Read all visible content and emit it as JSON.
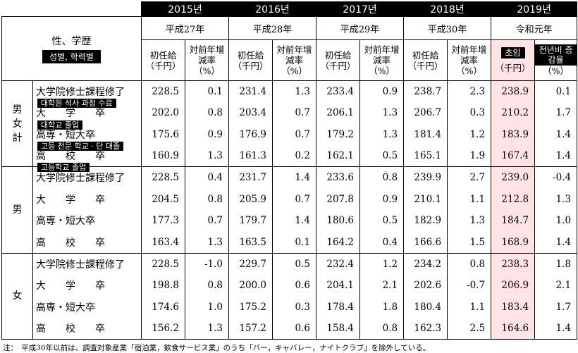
{
  "years": [
    {
      "year": "2015년",
      "era": "平成27年"
    },
    {
      "year": "2016년",
      "era": "平成28年"
    },
    {
      "year": "2017년",
      "era": "平成29年"
    },
    {
      "year": "2018년",
      "era": "平成30年"
    },
    {
      "year": "2019년",
      "era": "令和元年"
    }
  ],
  "header": {
    "stub_title": "性、学歴",
    "stub_title_ko": "성별, 학력별",
    "wage_label": "初任給",
    "rate_label": "対前年增減率",
    "wage_unit": "（千円）",
    "rate_unit": "（%）",
    "wage_label_ko": "초임",
    "rate_label_ko": "전년비 증감율"
  },
  "groups": [
    {
      "label": "男女計",
      "rows": [
        {
          "edu": "大学院修士課程修了",
          "edu_ko": "대학원 석사 과정 수료",
          "values": [
            "228.5",
            "0.1",
            "231.4",
            "1.3",
            "233.4",
            "0.9",
            "238.7",
            "2.3",
            "238.9",
            "0.1"
          ]
        },
        {
          "edu": "大　　学　　卒",
          "edu_ko": "대학교 졸업",
          "values": [
            "202.0",
            "0.8",
            "203.4",
            "0.7",
            "206.1",
            "1.3",
            "206.7",
            "0.3",
            "210.2",
            "1.7"
          ]
        },
        {
          "edu": "高専・短大卒",
          "edu_ko": "고등 전문 학교 · 단 대졸",
          "values": [
            "175.6",
            "0.9",
            "176.9",
            "0.7",
            "179.2",
            "1.3",
            "181.4",
            "1.2",
            "183.9",
            "1.4"
          ]
        },
        {
          "edu": "高　　校　　卒",
          "edu_ko": "고등학교 졸업",
          "values": [
            "160.9",
            "1.3",
            "161.3",
            "0.2",
            "162.1",
            "0.5",
            "165.1",
            "1.9",
            "167.4",
            "1.4"
          ]
        }
      ]
    },
    {
      "label": "男",
      "rows": [
        {
          "edu": "大学院修士課程修了",
          "edu_ko": "",
          "values": [
            "228.5",
            "0.4",
            "231.7",
            "1.4",
            "233.6",
            "0.8",
            "239.9",
            "2.7",
            "239.0",
            "-0.4"
          ]
        },
        {
          "edu": "大　　学　　卒",
          "edu_ko": "",
          "values": [
            "204.5",
            "0.8",
            "205.9",
            "0.7",
            "207.8",
            "0.9",
            "210.1",
            "1.1",
            "212.8",
            "1.3"
          ]
        },
        {
          "edu": "高専・短大卒",
          "edu_ko": "",
          "values": [
            "177.3",
            "0.7",
            "179.7",
            "1.4",
            "180.6",
            "0.5",
            "182.9",
            "1.3",
            "184.7",
            "1.0"
          ]
        },
        {
          "edu": "高　　校　　卒",
          "edu_ko": "",
          "values": [
            "163.4",
            "1.3",
            "163.5",
            "0.1",
            "164.2",
            "0.4",
            "166.6",
            "1.5",
            "168.9",
            "1.4"
          ]
        }
      ]
    },
    {
      "label": "女",
      "rows": [
        {
          "edu": "大学院修士課程修了",
          "edu_ko": "",
          "values": [
            "228.5",
            "-1.0",
            "229.7",
            "0.5",
            "232.4",
            "1.2",
            "234.2",
            "0.8",
            "238.3",
            "1.8"
          ]
        },
        {
          "edu": "大　　学　　卒",
          "edu_ko": "",
          "values": [
            "198.8",
            "0.8",
            "200.0",
            "0.6",
            "204.1",
            "2.1",
            "202.6",
            "-0.7",
            "206.9",
            "2.1"
          ]
        },
        {
          "edu": "高専・短大卒",
          "edu_ko": "",
          "values": [
            "174.6",
            "1.0",
            "175.2",
            "0.3",
            "178.4",
            "1.8",
            "180.4",
            "1.1",
            "183.4",
            "1.7"
          ]
        },
        {
          "edu": "高　　校　　卒",
          "edu_ko": "",
          "values": [
            "156.2",
            "1.3",
            "157.2",
            "0.6",
            "158.4",
            "0.8",
            "162.3",
            "2.5",
            "164.6",
            "1.4"
          ]
        }
      ]
    }
  ],
  "note": "注：　平成30年以前は、調査対象産業「宿泊業，飲食サービス業」のうち「バー，キャバレー，ナイトクラブ」を除外している。"
}
